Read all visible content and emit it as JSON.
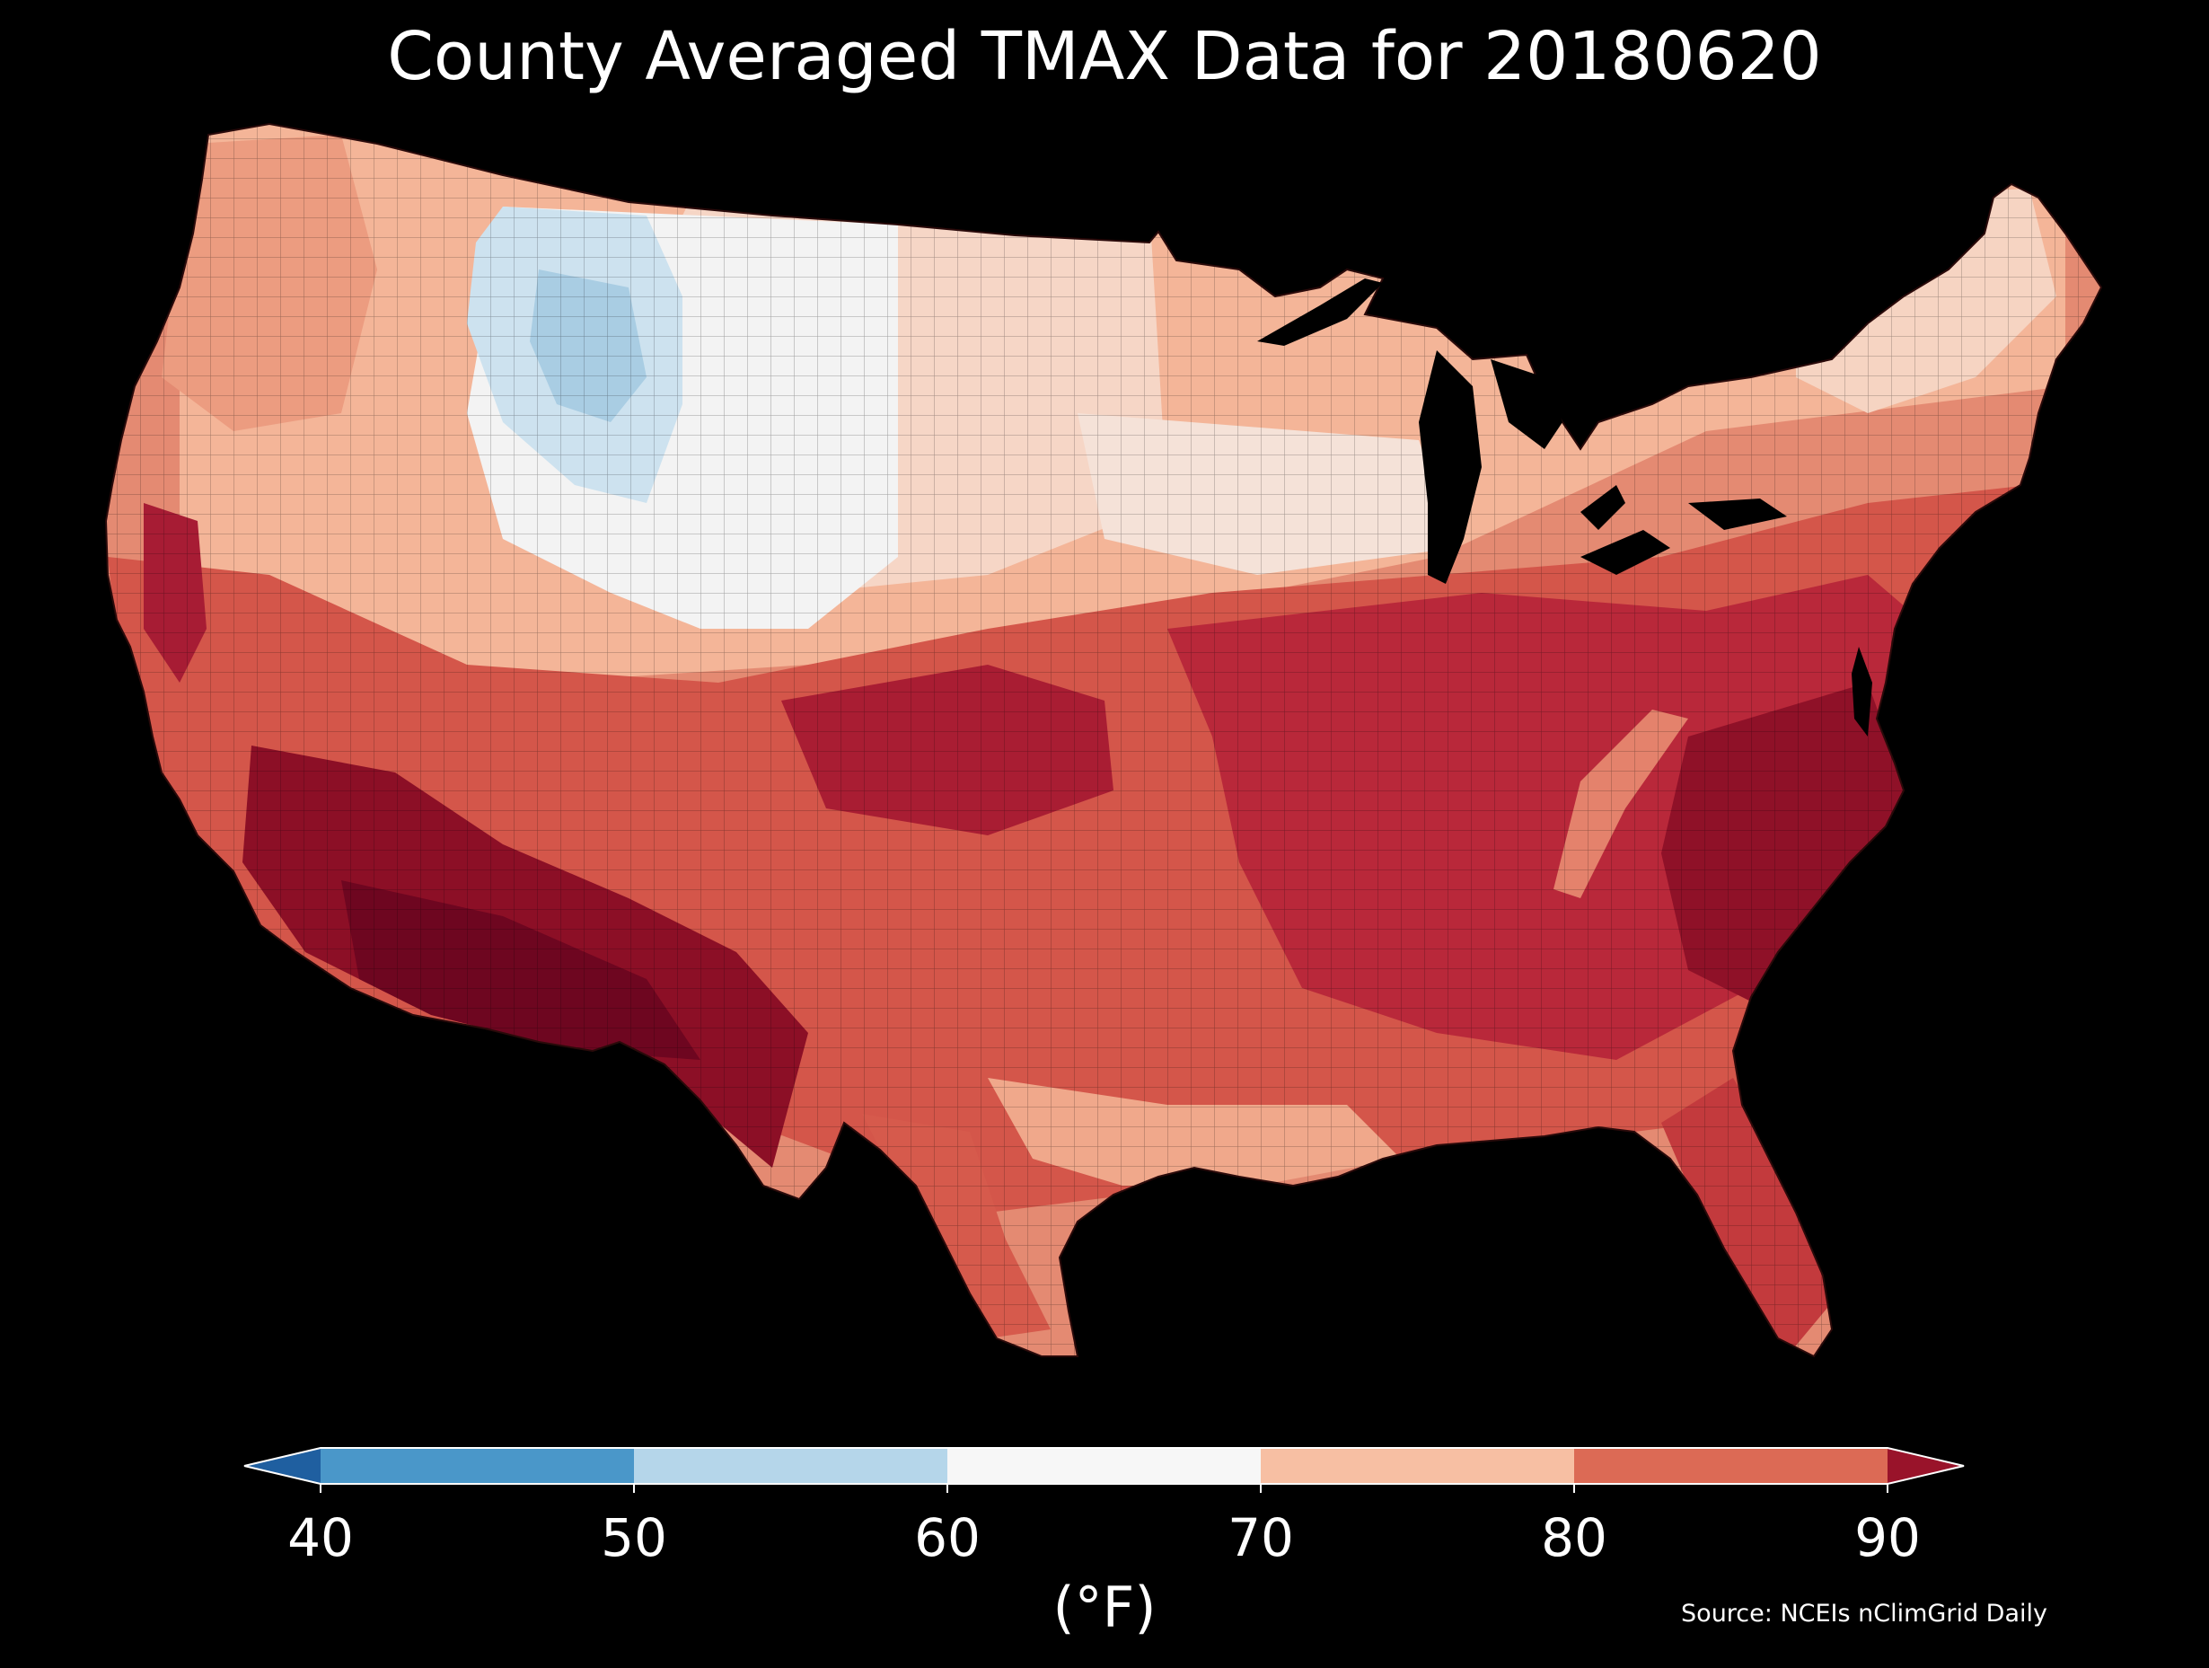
{
  "title": "County Averaged TMAX Data for 20180620",
  "colorbar": {
    "ticks": [
      "40",
      "50",
      "60",
      "70",
      "80",
      "90"
    ],
    "label": "(°F)",
    "bins": [
      {
        "range": "<40",
        "color": "#1f5fa0"
      },
      {
        "range": "40-50",
        "color": "#4a97c9"
      },
      {
        "range": "50-60",
        "color": "#b5d6ea"
      },
      {
        "range": "60-70",
        "color": "#f7f7f7"
      },
      {
        "range": "70-80",
        "color": "#f7bfa3"
      },
      {
        "range": "80-90",
        "color": "#dc6a55"
      },
      {
        "range": ">90",
        "color": "#99132a"
      }
    ]
  },
  "source": "Source: NCEIs nClimGrid Daily",
  "colors": {
    "background": "#000000",
    "text": "#ffffff"
  }
}
